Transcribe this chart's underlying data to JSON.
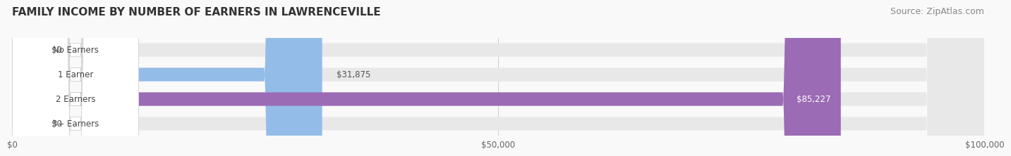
{
  "title": "FAMILY INCOME BY NUMBER OF EARNERS IN LAWRENCEVILLE",
  "source": "Source: ZipAtlas.com",
  "categories": [
    "No Earners",
    "1 Earner",
    "2 Earners",
    "3+ Earners"
  ],
  "values": [
    0,
    31875,
    85227,
    0
  ],
  "bar_colors": [
    "#f4a0a0",
    "#94bce8",
    "#9b6bb5",
    "#7dd4d4"
  ],
  "bar_bg_color": "#ebebeb",
  "label_bg_colors": [
    "#f4a0a0",
    "#94bce8",
    "#9b6bb5",
    "#7dd4d4"
  ],
  "value_labels": [
    "$0",
    "$31,875",
    "$85,227",
    "$0"
  ],
  "xlim": [
    0,
    100000
  ],
  "xticks": [
    0,
    50000,
    100000
  ],
  "xtick_labels": [
    "$0",
    "$50,000",
    "$100,000"
  ],
  "title_fontsize": 11,
  "source_fontsize": 9,
  "bar_height": 0.55,
  "background_color": "#f9f9f9",
  "figsize": [
    14.06,
    2.33
  ]
}
